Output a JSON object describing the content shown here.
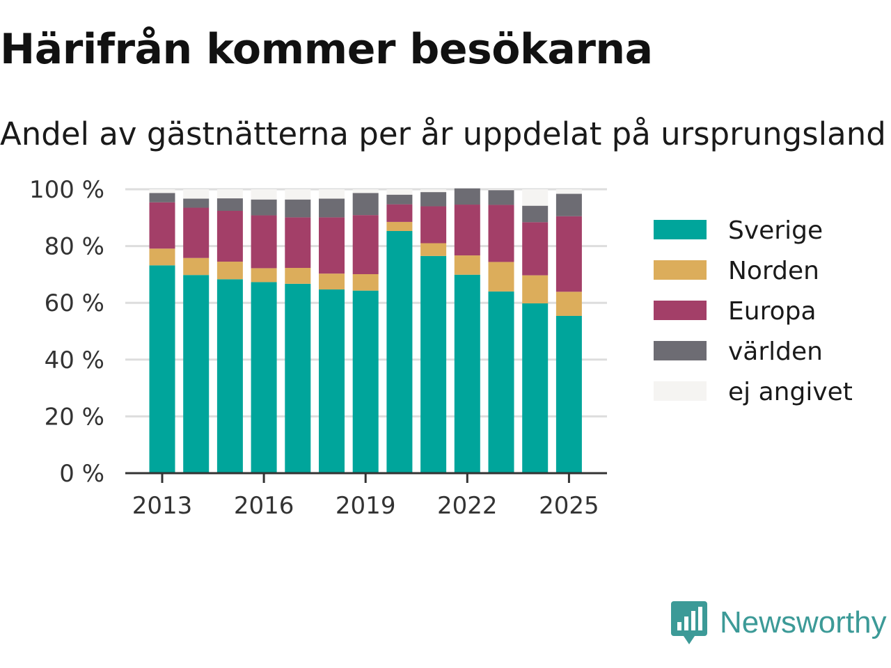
{
  "header": {
    "title": "Härifrån kommer besökarna",
    "subtitle": "Andel av gästnätterna per år uppdelat på ursprungsland"
  },
  "brand": {
    "name": "Newsworthy",
    "icon": "newsworthy-logo-icon",
    "color": "#3c9a97"
  },
  "chart_data": {
    "type": "bar",
    "stacked": true,
    "title": "",
    "xlabel": "",
    "ylabel": "",
    "ylim": [
      0,
      100
    ],
    "y_ticks": [
      0,
      20,
      40,
      60,
      80,
      100
    ],
    "y_tick_suffix": " %",
    "x_ticks": [
      "2013",
      "2016",
      "2019",
      "2022",
      "2025"
    ],
    "grid": "horizontal",
    "legend_position": "right",
    "categories": [
      "2013",
      "2014",
      "2015",
      "2016",
      "2017",
      "2018",
      "2019",
      "2020",
      "2021",
      "2022",
      "2023",
      "2024",
      "2025"
    ],
    "series": [
      {
        "name": "Sverige",
        "color": "#00a59b",
        "values": [
          73.2,
          69.8,
          68.3,
          67.3,
          66.7,
          64.7,
          64.3,
          85.3,
          76.5,
          69.9,
          64.0,
          59.8,
          55.4
        ]
      },
      {
        "name": "Norden",
        "color": "#dcad5b",
        "values": [
          5.9,
          6.0,
          6.2,
          4.9,
          5.6,
          5.6,
          5.8,
          3.2,
          4.5,
          6.8,
          10.4,
          9.9,
          8.5
        ]
      },
      {
        "name": "Europa",
        "color": "#a33f68",
        "values": [
          16.3,
          17.7,
          17.9,
          18.6,
          17.8,
          19.8,
          20.8,
          6.2,
          13.0,
          17.9,
          20.1,
          18.7,
          26.6
        ]
      },
      {
        "name": "världen",
        "color": "#6d6c73",
        "values": [
          3.3,
          3.2,
          4.4,
          5.6,
          6.3,
          6.6,
          7.8,
          3.4,
          5.0,
          5.7,
          5.2,
          5.8,
          7.9
        ]
      },
      {
        "name": "ej angivet",
        "color": "#f5f4f2",
        "values": [
          1.3,
          3.3,
          3.2,
          3.6,
          3.6,
          3.3,
          1.3,
          1.9,
          1.0,
          0.0,
          0.3,
          5.8,
          1.6
        ]
      }
    ]
  }
}
